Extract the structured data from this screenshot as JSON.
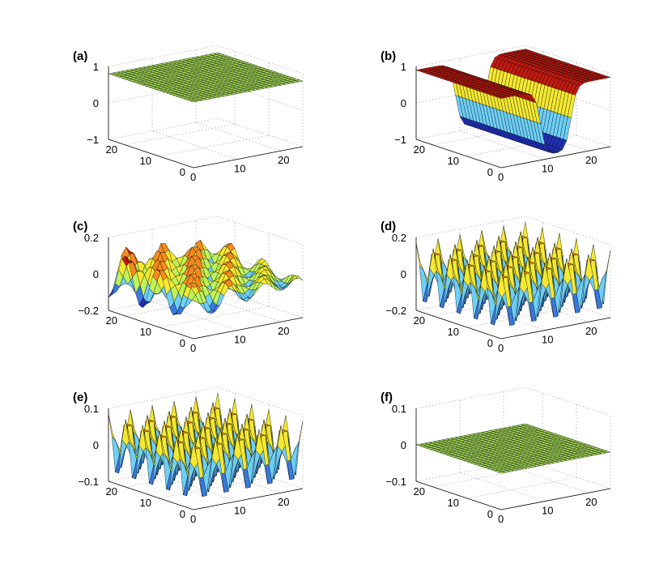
{
  "figure": {
    "panels": [
      {
        "label": "(a)",
        "surface": "flat",
        "amplitude": 0.8,
        "zlim": [
          -1,
          1
        ],
        "zticks": [
          "1",
          "0",
          "−1"
        ],
        "xticks": [
          "0",
          "10",
          "20"
        ],
        "yticks": [
          "0",
          "10",
          "20"
        ]
      },
      {
        "label": "(b)",
        "surface": "step",
        "amplitude": 0.9,
        "zlim": [
          -1,
          1
        ],
        "zticks": [
          "1",
          "0",
          "−1"
        ],
        "xticks": [
          "0",
          "10",
          "20"
        ],
        "yticks": [
          "0",
          "10",
          "20"
        ]
      },
      {
        "label": "(c)",
        "surface": "smooth-waves",
        "amplitude": 0.13,
        "zlim": [
          -0.2,
          0.2
        ],
        "zticks": [
          "0.2",
          "0",
          "−0.2"
        ],
        "xticks": [
          "0",
          "10",
          "20"
        ],
        "yticks": [
          "0",
          "10",
          "20"
        ]
      },
      {
        "label": "(d)",
        "surface": "egg-crate",
        "amplitude": 0.17,
        "zlim": [
          -0.2,
          0.2
        ],
        "zticks": [
          "0.2",
          "0",
          "−0.2"
        ],
        "xticks": [
          "0",
          "10",
          "20"
        ],
        "yticks": [
          "0",
          "10",
          "20"
        ]
      },
      {
        "label": "(e)",
        "surface": "egg-crate",
        "amplitude": 0.085,
        "zlim": [
          -0.1,
          0.1
        ],
        "zticks": [
          "0.1",
          "0",
          "−0.1"
        ],
        "xticks": [
          "0",
          "10",
          "20"
        ],
        "yticks": [
          "0",
          "10",
          "20"
        ]
      },
      {
        "label": "(f)",
        "surface": "flat",
        "amplitude": 0.0,
        "zlim": [
          -0.1,
          0.1
        ],
        "zticks": [
          "0.1",
          "0",
          "−0.1"
        ],
        "xticks": [
          "0",
          "10",
          "20"
        ],
        "yticks": [
          "0",
          "10",
          "20"
        ]
      }
    ]
  },
  "chart_data": {
    "type": "surface",
    "grid_size": 25,
    "xlim": [
      0,
      25
    ],
    "ylim": [
      0,
      25
    ],
    "grid": true,
    "layout": "3 rows x 2 columns",
    "colormap": [
      "#1f2fb5",
      "#3a78e0",
      "#6ecff6",
      "#bff35a",
      "#f4e832",
      "#f58a1f",
      "#c21a10"
    ],
    "panels": [
      {
        "label": "(a)",
        "zlim": [
          -1,
          1
        ],
        "description_values": {
          "z": 0.8
        }
      },
      {
        "label": "(b)",
        "zlim": [
          -1,
          1
        ],
        "description_values": {
          "z_min": -0.9,
          "z_max": 0.9
        }
      },
      {
        "label": "(c)",
        "zlim": [
          -0.2,
          0.2
        ],
        "description_values": {
          "z_min": -0.13,
          "z_max": 0.13
        }
      },
      {
        "label": "(d)",
        "zlim": [
          -0.2,
          0.2
        ],
        "description_values": {
          "z_min": -0.17,
          "z_max": 0.17
        }
      },
      {
        "label": "(e)",
        "zlim": [
          -0.1,
          0.1
        ],
        "description_values": {
          "z_min": -0.085,
          "z_max": 0.085
        }
      },
      {
        "label": "(f)",
        "zlim": [
          -0.1,
          0.1
        ],
        "description_values": {
          "z": 0
        }
      }
    ]
  }
}
